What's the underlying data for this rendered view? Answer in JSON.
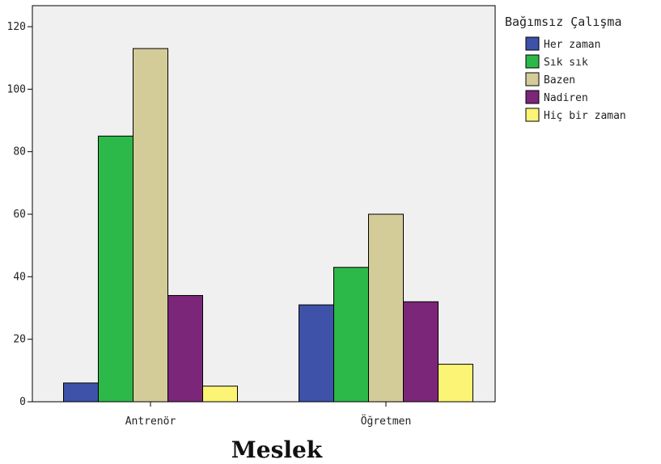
{
  "chart_data": {
    "type": "bar",
    "categories": [
      "Antrenör",
      "Öğretmen"
    ],
    "series": [
      {
        "name": "Her zaman",
        "values": [
          6,
          31
        ],
        "color": "#3d52a8"
      },
      {
        "name": "Sık sık",
        "values": [
          85,
          43
        ],
        "color": "#2db84a"
      },
      {
        "name": "Bazen",
        "values": [
          113,
          60
        ],
        "color": "#d4cc98"
      },
      {
        "name": "Nadiren",
        "values": [
          34,
          32
        ],
        "color": "#7b2679"
      },
      {
        "name": "Hiç bir zaman",
        "values": [
          5,
          12
        ],
        "color": "#fbf474"
      }
    ],
    "xlabel": "Meslek",
    "ylabel": "",
    "ylim": [
      0,
      120
    ],
    "yticks": [
      0,
      20,
      40,
      60,
      80,
      100,
      120
    ],
    "legend_title": "Bağımsız Çalışma",
    "legend_position": "right",
    "plot_background": "#f0f0f0",
    "grid": false
  }
}
